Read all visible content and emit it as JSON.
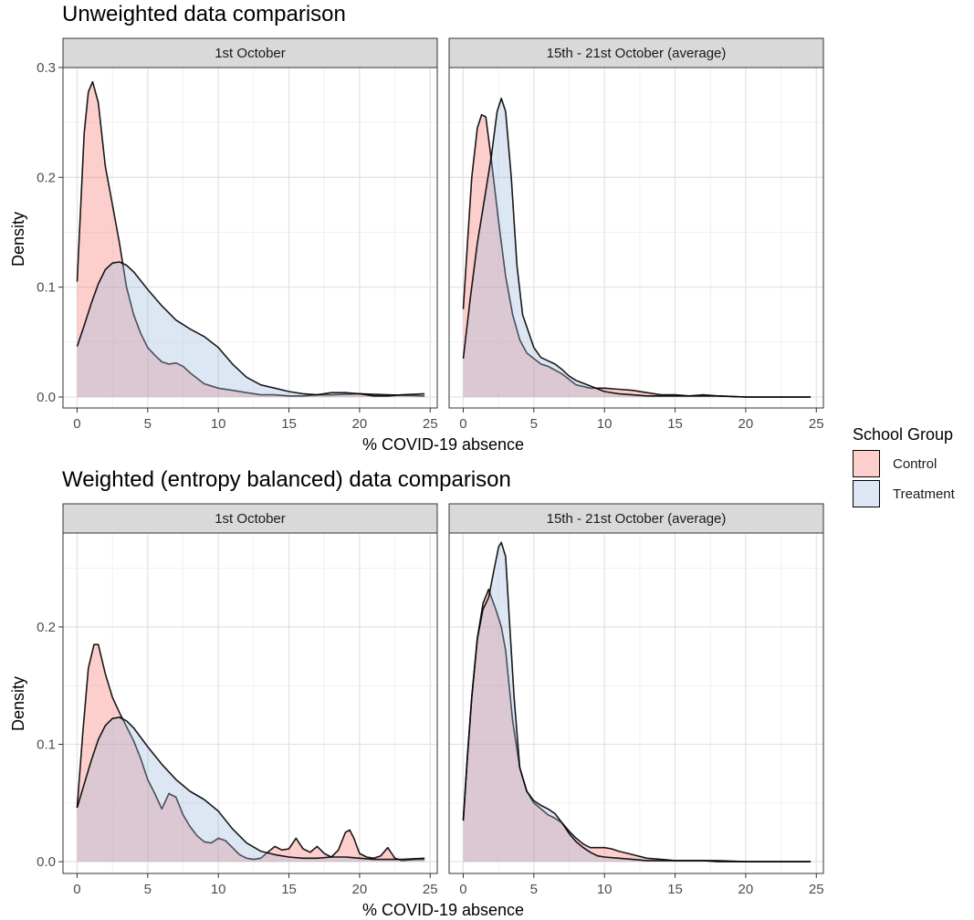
{
  "colors": {
    "control": "#f8766d",
    "treatment": "#9fbbdc",
    "strip": "#d9d9d9"
  },
  "legend": {
    "title": "School Group",
    "items": [
      {
        "label": "Control",
        "color": "#f8766d"
      },
      {
        "label": "Treatment",
        "color": "#9fbbdc"
      }
    ]
  },
  "chart_data": [
    {
      "type": "area",
      "title": "Unweighted data comparison",
      "xlabel": "% COVID-19 absence",
      "ylabel": "Density",
      "xlim": [
        -1,
        25.5
      ],
      "ylim": [
        -0.01,
        0.3
      ],
      "xticks": [
        0,
        5,
        10,
        15,
        20,
        25
      ],
      "yticks": [
        0.0,
        0.1,
        0.2,
        0.3
      ],
      "ytick_labels": [
        "0.0",
        "0.1",
        "0.2",
        "0.3"
      ],
      "grid": true,
      "panels": [
        {
          "strip": "1st October",
          "series": [
            {
              "name": "Control",
              "x": [
                0,
                0.5,
                0.8,
                1.1,
                1.5,
                2,
                2.5,
                3,
                3.5,
                4,
                4.5,
                5,
                5.5,
                6,
                6.5,
                7,
                7.5,
                8,
                9,
                10,
                11,
                12,
                13,
                14,
                15,
                16,
                17,
                18,
                20,
                22,
                24.6
              ],
              "y": [
                0.105,
                0.24,
                0.278,
                0.287,
                0.268,
                0.21,
                0.175,
                0.14,
                0.1,
                0.075,
                0.058,
                0.045,
                0.038,
                0.032,
                0.03,
                0.031,
                0.028,
                0.022,
                0.012,
                0.008,
                0.006,
                0.004,
                0.002,
                0.002,
                0.001,
                0.001,
                0.002,
                0.002,
                0.003,
                0.002,
                0.001
              ]
            },
            {
              "name": "Treatment",
              "x": [
                0,
                0.5,
                1,
                1.5,
                2,
                2.5,
                3,
                3.5,
                4,
                5,
                6,
                7,
                8,
                9,
                10,
                11,
                12,
                13,
                14,
                15,
                16,
                17,
                18,
                19,
                20,
                21,
                22,
                23,
                24.6
              ],
              "y": [
                0.046,
                0.065,
                0.085,
                0.103,
                0.116,
                0.122,
                0.123,
                0.12,
                0.114,
                0.098,
                0.083,
                0.07,
                0.062,
                0.055,
                0.045,
                0.03,
                0.018,
                0.011,
                0.008,
                0.005,
                0.003,
                0.002,
                0.004,
                0.004,
                0.003,
                0.001,
                0.001,
                0.002,
                0.003
              ]
            }
          ]
        },
        {
          "strip": "15th - 21st October (average)",
          "series": [
            {
              "name": "Control",
              "x": [
                0,
                0.3,
                0.6,
                1,
                1.3,
                1.6,
                2,
                2.5,
                3,
                3.5,
                4,
                4.5,
                5,
                5.5,
                6,
                7,
                7.5,
                8,
                9,
                10,
                11,
                12,
                13,
                14,
                15,
                16,
                17,
                18,
                20,
                24.6
              ],
              "y": [
                0.08,
                0.14,
                0.2,
                0.245,
                0.257,
                0.255,
                0.215,
                0.16,
                0.11,
                0.075,
                0.052,
                0.04,
                0.035,
                0.03,
                0.028,
                0.021,
                0.016,
                0.011,
                0.008,
                0.008,
                0.007,
                0.006,
                0.004,
                0.002,
                0.002,
                0.001,
                0.002,
                0.001,
                0.0,
                0.0
              ]
            },
            {
              "name": "Treatment",
              "x": [
                0,
                0.5,
                1,
                1.5,
                2,
                2.4,
                2.7,
                3,
                3.4,
                3.8,
                4.2,
                5,
                5.5,
                6,
                6.5,
                7,
                7.5,
                8,
                9,
                10,
                11,
                12,
                13,
                14,
                15,
                16,
                17,
                18,
                20,
                24.6
              ],
              "y": [
                0.035,
                0.09,
                0.14,
                0.18,
                0.22,
                0.26,
                0.272,
                0.26,
                0.2,
                0.12,
                0.075,
                0.045,
                0.036,
                0.033,
                0.03,
                0.025,
                0.019,
                0.015,
                0.01,
                0.005,
                0.003,
                0.002,
                0.001,
                0.001,
                0.001,
                0.001,
                0.001,
                0.001,
                0.0,
                0.0
              ]
            }
          ]
        }
      ]
    },
    {
      "type": "area",
      "title": "Weighted (entropy balanced) data comparison",
      "xlabel": "% COVID-19 absence",
      "ylabel": "Density",
      "xlim": [
        -1,
        25.5
      ],
      "ylim": [
        -0.01,
        0.28
      ],
      "xticks": [
        0,
        5,
        10,
        15,
        20,
        25
      ],
      "yticks": [
        0.0,
        0.1,
        0.2
      ],
      "ytick_labels": [
        "0.0",
        "0.1",
        "0.2"
      ],
      "grid": true,
      "panels": [
        {
          "strip": "1st October",
          "series": [
            {
              "name": "Control",
              "x": [
                0,
                0.4,
                0.8,
                1.2,
                1.5,
                2,
                2.5,
                3,
                3.5,
                4,
                4.5,
                5,
                5.5,
                6,
                6.5,
                7,
                7.5,
                8,
                8.5,
                9,
                9.5,
                10,
                10.5,
                11,
                11.5,
                12,
                12.5,
                13,
                13.5,
                14,
                14.5,
                15,
                15.5,
                16,
                16.5,
                17,
                17.5,
                18,
                18.5,
                19,
                19.3,
                19.6,
                20,
                20.5,
                21,
                21.5,
                22,
                22.5,
                23,
                24,
                24.6
              ],
              "y": [
                0.046,
                0.11,
                0.165,
                0.185,
                0.185,
                0.16,
                0.14,
                0.127,
                0.115,
                0.103,
                0.088,
                0.07,
                0.058,
                0.045,
                0.058,
                0.055,
                0.04,
                0.03,
                0.022,
                0.017,
                0.016,
                0.02,
                0.018,
                0.012,
                0.006,
                0.003,
                0.002,
                0.003,
                0.008,
                0.013,
                0.01,
                0.011,
                0.02,
                0.011,
                0.008,
                0.013,
                0.007,
                0.004,
                0.01,
                0.025,
                0.027,
                0.02,
                0.007,
                0.004,
                0.003,
                0.005,
                0.012,
                0.003,
                0.001,
                0.002,
                0.002
              ]
            },
            {
              "name": "Treatment",
              "x": [
                0,
                0.5,
                1,
                1.5,
                2,
                2.5,
                3,
                3.5,
                4,
                5,
                6,
                7,
                8,
                9,
                10,
                11,
                12,
                13,
                14,
                15,
                16,
                17,
                18,
                19,
                20,
                21,
                22,
                23,
                24.6
              ],
              "y": [
                0.046,
                0.066,
                0.086,
                0.104,
                0.116,
                0.122,
                0.123,
                0.12,
                0.114,
                0.098,
                0.083,
                0.07,
                0.06,
                0.053,
                0.043,
                0.028,
                0.016,
                0.009,
                0.006,
                0.004,
                0.003,
                0.003,
                0.004,
                0.004,
                0.003,
                0.002,
                0.002,
                0.002,
                0.003
              ]
            }
          ]
        },
        {
          "strip": "15th - 21st October (average)",
          "series": [
            {
              "name": "Control",
              "x": [
                0,
                0.3,
                0.6,
                1,
                1.4,
                1.8,
                2,
                2.3,
                2.7,
                3,
                3.5,
                4,
                4.5,
                5,
                5.5,
                6,
                6.5,
                7,
                7.5,
                8,
                8.5,
                9,
                9.5,
                10,
                10.5,
                11,
                12,
                13,
                14,
                15,
                16,
                17,
                18,
                20,
                24.6
              ],
              "y": [
                0.035,
                0.09,
                0.14,
                0.19,
                0.22,
                0.232,
                0.225,
                0.215,
                0.2,
                0.18,
                0.12,
                0.08,
                0.06,
                0.05,
                0.045,
                0.04,
                0.037,
                0.033,
                0.026,
                0.02,
                0.015,
                0.012,
                0.012,
                0.012,
                0.011,
                0.009,
                0.006,
                0.003,
                0.002,
                0.001,
                0.001,
                0.001,
                0.001,
                0.0,
                0.0
              ]
            },
            {
              "name": "Treatment",
              "x": [
                0,
                0.3,
                0.6,
                1,
                1.4,
                1.8,
                2.2,
                2.5,
                2.7,
                3,
                3.3,
                3.6,
                4,
                4.5,
                5,
                5.5,
                6,
                6.5,
                7,
                7.5,
                8,
                8.5,
                9,
                9.5,
                10,
                11,
                12,
                13,
                14,
                15,
                16,
                17,
                18,
                20,
                24.6
              ],
              "y": [
                0.035,
                0.09,
                0.14,
                0.19,
                0.215,
                0.225,
                0.25,
                0.268,
                0.272,
                0.26,
                0.2,
                0.14,
                0.08,
                0.06,
                0.052,
                0.048,
                0.045,
                0.041,
                0.033,
                0.024,
                0.017,
                0.012,
                0.008,
                0.005,
                0.004,
                0.003,
                0.002,
                0.001,
                0.001,
                0.001,
                0.001,
                0.001,
                0.0,
                0.0,
                0.0
              ]
            }
          ]
        }
      ]
    }
  ]
}
